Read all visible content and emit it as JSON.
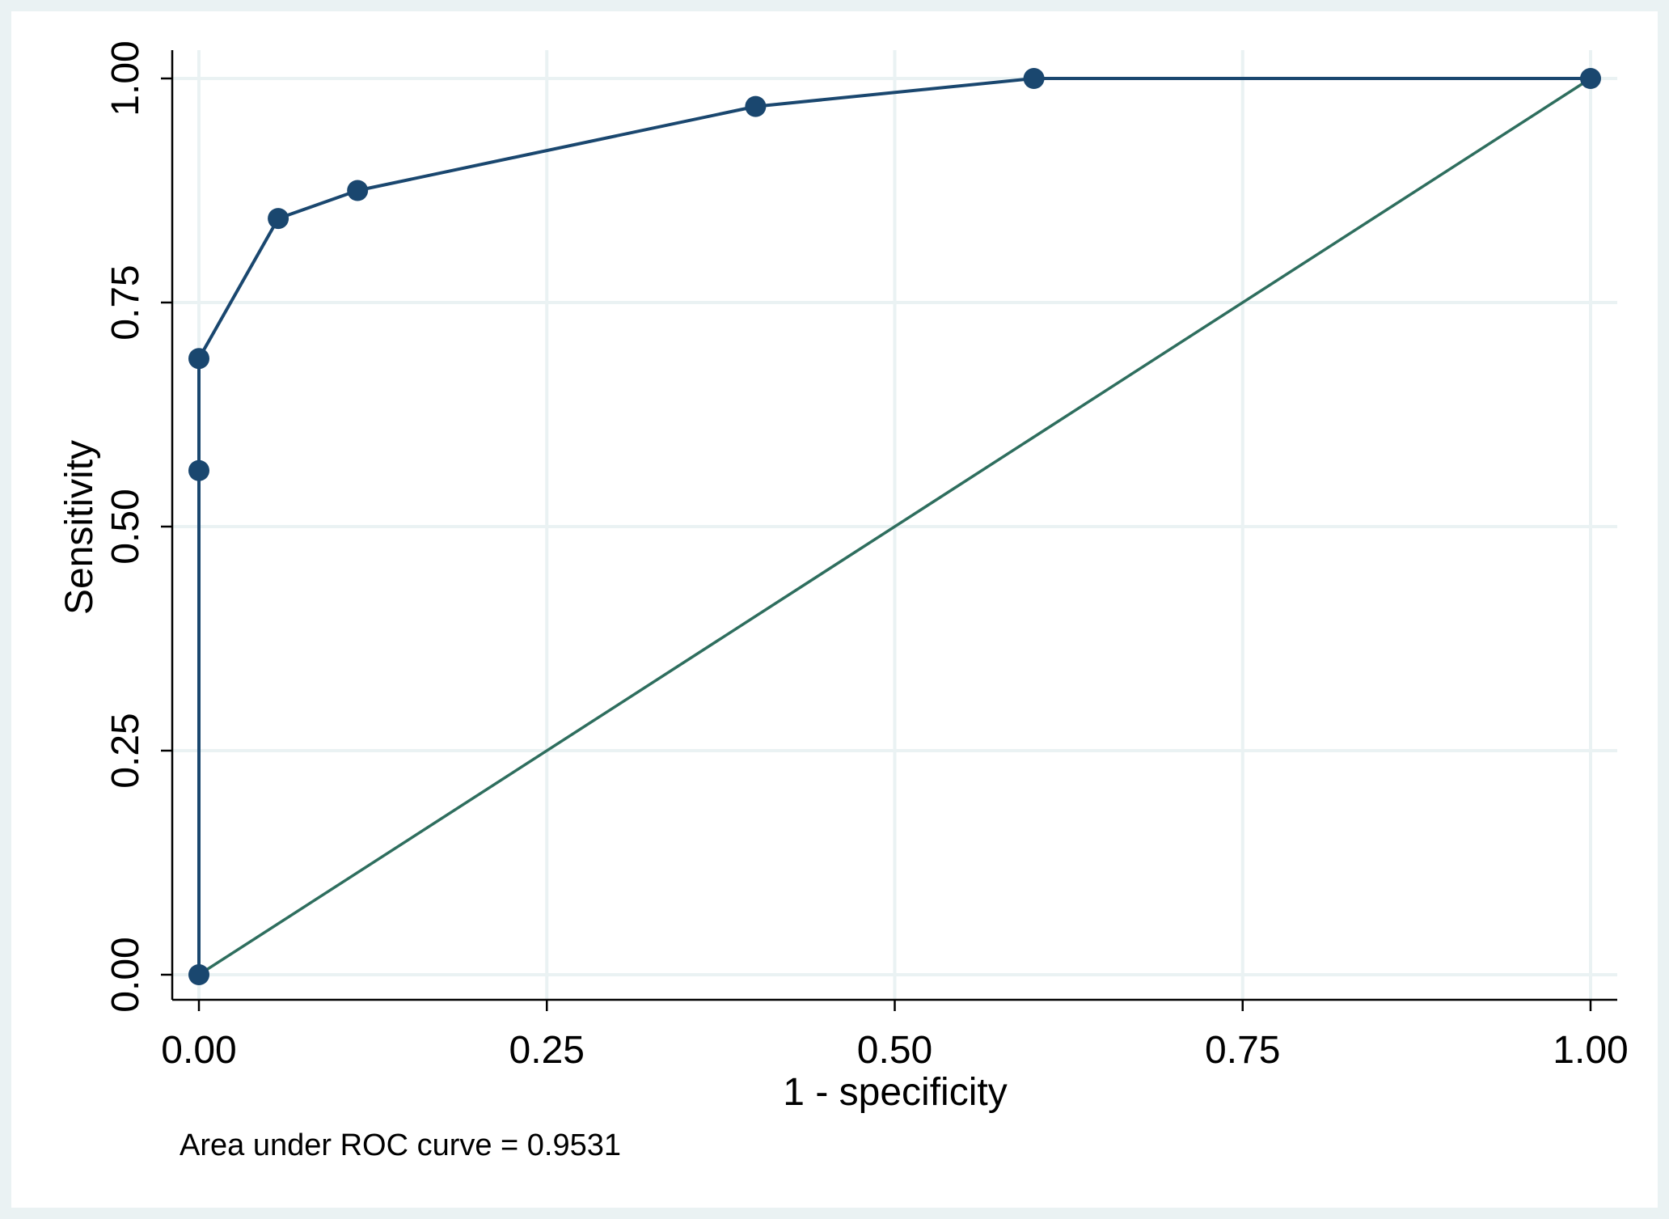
{
  "chart_data": {
    "type": "line",
    "xlabel": "1 - specificity",
    "ylabel": "Sensitivity",
    "xlim": [
      0,
      1
    ],
    "ylim": [
      0,
      1
    ],
    "xticks": [
      "0.00",
      "0.25",
      "0.50",
      "0.75",
      "1.00"
    ],
    "yticks": [
      "0.00",
      "0.25",
      "0.50",
      "0.75",
      "1.00"
    ],
    "grid": true,
    "note": "Area under ROC curve = 0.9531",
    "series": [
      {
        "kind": "roc-curve",
        "x": [
          0.0,
          0.0,
          0.0,
          0.057,
          0.114,
          0.4,
          0.6,
          1.0
        ],
        "y": [
          0.0,
          0.5625,
          0.6875,
          0.84375,
          0.875,
          0.96875,
          1.0,
          1.0
        ],
        "color": "#1a476f"
      },
      {
        "kind": "reference-line",
        "x": [
          0,
          1
        ],
        "y": [
          0,
          1
        ],
        "color": "#2e6e5e"
      }
    ],
    "colors": {
      "outer_background": "#eaf2f3",
      "plot_background": "#ffffff",
      "grid": "#eaf2f3",
      "axis": "#000000"
    }
  }
}
